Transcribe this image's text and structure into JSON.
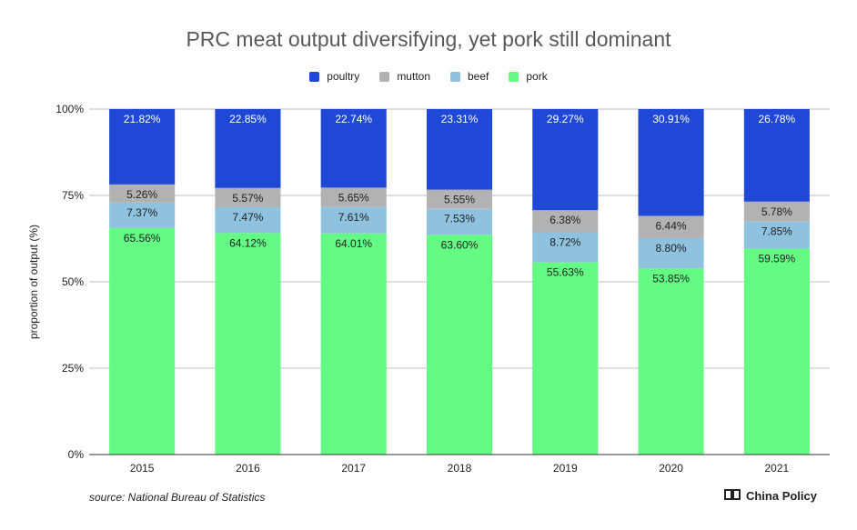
{
  "chart_data": {
    "type": "bar",
    "stacked": true,
    "title": "PRC meat output diversifying, yet pork still dominant",
    "ylabel": "proportion of output (%)",
    "xlabel": "",
    "categories": [
      "2015",
      "2016",
      "2017",
      "2018",
      "2019",
      "2020",
      "2021"
    ],
    "ylim": [
      0,
      100
    ],
    "yticks": [
      "0%",
      "25%",
      "50%",
      "75%",
      "100%"
    ],
    "grid": true,
    "legend_position": "top",
    "series": [
      {
        "name": "pork",
        "color": "#63fb84",
        "values": [
          65.56,
          64.12,
          64.01,
          63.6,
          55.63,
          53.85,
          59.59
        ],
        "labels": [
          "65.56%",
          "64.12%",
          "64.01%",
          "63.60%",
          "55.63%",
          "53.85%",
          "59.59%"
        ]
      },
      {
        "name": "beef",
        "color": "#8ec2df",
        "values": [
          7.37,
          7.47,
          7.61,
          7.53,
          8.72,
          8.8,
          7.85
        ],
        "labels": [
          "7.37%",
          "7.47%",
          "7.61%",
          "7.53%",
          "8.72%",
          "8.80%",
          "7.85%"
        ]
      },
      {
        "name": "mutton",
        "color": "#b2b2b2",
        "values": [
          5.26,
          5.57,
          5.65,
          5.55,
          6.38,
          6.44,
          5.78
        ],
        "labels": [
          "5.26%",
          "5.57%",
          "5.65%",
          "5.55%",
          "6.38%",
          "6.44%",
          "5.78%"
        ]
      },
      {
        "name": "poultry",
        "color": "#1f48d6",
        "values": [
          21.82,
          22.85,
          22.74,
          23.31,
          29.27,
          30.91,
          26.78
        ],
        "labels": [
          "21.82%",
          "22.85%",
          "22.74%",
          "23.31%",
          "29.27%",
          "30.91%",
          "26.78%"
        ]
      }
    ],
    "legend_order": [
      "poultry",
      "mutton",
      "beef",
      "pork"
    ]
  },
  "source": "source: National Bureau of Statistics",
  "brand": "China Policy"
}
